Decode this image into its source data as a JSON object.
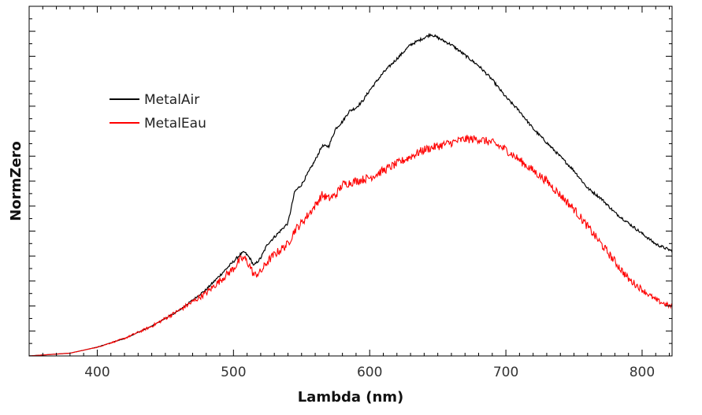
{
  "chart_data": {
    "type": "line",
    "xlabel": "Lambda (nm)",
    "ylabel": "NormZero",
    "xlim": [
      350,
      822
    ],
    "ylim": [
      0,
      1.0
    ],
    "x_ticks": [
      400,
      500,
      600,
      700,
      800
    ],
    "y_tick_labels_shown": false,
    "grid": false,
    "legend_position": "upper-left",
    "series": [
      {
        "name": "MetalAir",
        "color": "#000000",
        "x": [
          350,
          380,
          400,
          420,
          440,
          460,
          480,
          490,
          500,
          505,
          508,
          512,
          515,
          520,
          525,
          530,
          540,
          545,
          550,
          560,
          565,
          570,
          575,
          580,
          585,
          590,
          595,
          600,
          610,
          620,
          630,
          640,
          645,
          650,
          660,
          670,
          680,
          690,
          700,
          710,
          720,
          730,
          740,
          750,
          760,
          770,
          780,
          790,
          800,
          810,
          822
        ],
        "y": [
          0.0,
          0.008,
          0.025,
          0.05,
          0.085,
          0.13,
          0.19,
          0.23,
          0.27,
          0.29,
          0.297,
          0.28,
          0.258,
          0.28,
          0.32,
          0.34,
          0.38,
          0.47,
          0.49,
          0.56,
          0.6,
          0.6,
          0.65,
          0.67,
          0.7,
          0.71,
          0.73,
          0.76,
          0.81,
          0.85,
          0.89,
          0.91,
          0.92,
          0.91,
          0.89,
          0.86,
          0.83,
          0.79,
          0.74,
          0.7,
          0.65,
          0.61,
          0.57,
          0.53,
          0.48,
          0.45,
          0.41,
          0.38,
          0.35,
          0.32,
          0.3
        ]
      },
      {
        "name": "MetalEau",
        "color": "#ff0000",
        "x": [
          350,
          380,
          400,
          420,
          440,
          460,
          480,
          490,
          500,
          505,
          508,
          512,
          515,
          520,
          525,
          530,
          540,
          545,
          550,
          560,
          565,
          570,
          575,
          580,
          590,
          600,
          610,
          620,
          630,
          640,
          650,
          660,
          670,
          680,
          690,
          700,
          710,
          720,
          730,
          740,
          750,
          760,
          770,
          780,
          790,
          800,
          810,
          822
        ],
        "y": [
          0.0,
          0.008,
          0.025,
          0.05,
          0.085,
          0.13,
          0.18,
          0.215,
          0.25,
          0.275,
          0.28,
          0.258,
          0.23,
          0.24,
          0.27,
          0.29,
          0.32,
          0.36,
          0.38,
          0.43,
          0.46,
          0.45,
          0.46,
          0.49,
          0.5,
          0.51,
          0.53,
          0.55,
          0.57,
          0.59,
          0.6,
          0.61,
          0.62,
          0.62,
          0.61,
          0.59,
          0.56,
          0.53,
          0.5,
          0.46,
          0.42,
          0.37,
          0.32,
          0.27,
          0.22,
          0.19,
          0.16,
          0.14
        ]
      }
    ]
  }
}
